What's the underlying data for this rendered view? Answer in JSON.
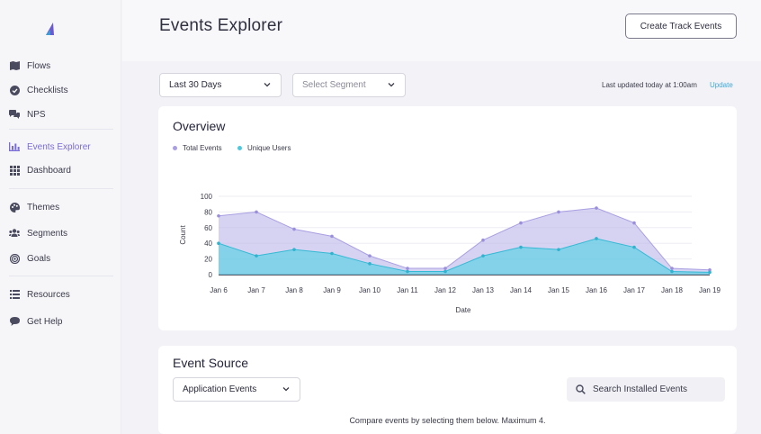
{
  "sidebar": {
    "items": [
      {
        "label": "Flows",
        "icon": "map-icon"
      },
      {
        "label": "Checklists",
        "icon": "check-circle-icon"
      },
      {
        "label": "NPS",
        "icon": "chat-icon"
      },
      {
        "label": "Events Explorer",
        "icon": "bar-chart-icon"
      },
      {
        "label": "Dashboard",
        "icon": "grid-icon"
      },
      {
        "label": "Themes",
        "icon": "palette-icon"
      },
      {
        "label": "Segments",
        "icon": "users-icon"
      },
      {
        "label": "Goals",
        "icon": "target-icon"
      },
      {
        "label": "Resources",
        "icon": "list-icon"
      },
      {
        "label": "Get Help",
        "icon": "help-chat-icon"
      }
    ],
    "active": "Events Explorer"
  },
  "header": {
    "title": "Events Explorer",
    "create_button": "Create Track Events"
  },
  "filters": {
    "date_range": "Last 30 Days",
    "segment_placeholder": "Select Segment",
    "last_updated": "Last updated today at 1:00am",
    "update_link": "Update"
  },
  "overview": {
    "title": "Overview"
  },
  "colors": {
    "accent": "#7a6cd6",
    "total_events": "#b4aee8",
    "unique_users": "#5fd1e6",
    "link": "#3fa7d6"
  },
  "chart_data": {
    "type": "area",
    "x": [
      "Jan 6",
      "Jan 7",
      "Jan 8",
      "Jan 9",
      "Jan 10",
      "Jan 11",
      "Jan 12",
      "Jan 13",
      "Jan 14",
      "Jan 15",
      "Jan 16",
      "Jan 17",
      "Jan 18",
      "Jan 19"
    ],
    "series": [
      {
        "name": "Total Events",
        "values": [
          75,
          80,
          58,
          49,
          24,
          8,
          8,
          44,
          66,
          80,
          85,
          66,
          8,
          6
        ]
      },
      {
        "name": "Unique Users",
        "values": [
          40,
          24,
          32,
          27,
          14,
          4,
          4,
          24,
          35,
          32,
          46,
          35,
          4,
          3
        ]
      }
    ],
    "ylabel": "Count",
    "xlabel": "Date",
    "yticks": [
      0,
      20,
      40,
      60,
      80,
      100
    ],
    "ylim": [
      0,
      100
    ],
    "legend": "top-left"
  },
  "event_source": {
    "title": "Event Source",
    "dropdown": "Application Events",
    "search_placeholder": "Search Installed Events",
    "footer_note": "Compare events by selecting them below. Maximum 4."
  }
}
